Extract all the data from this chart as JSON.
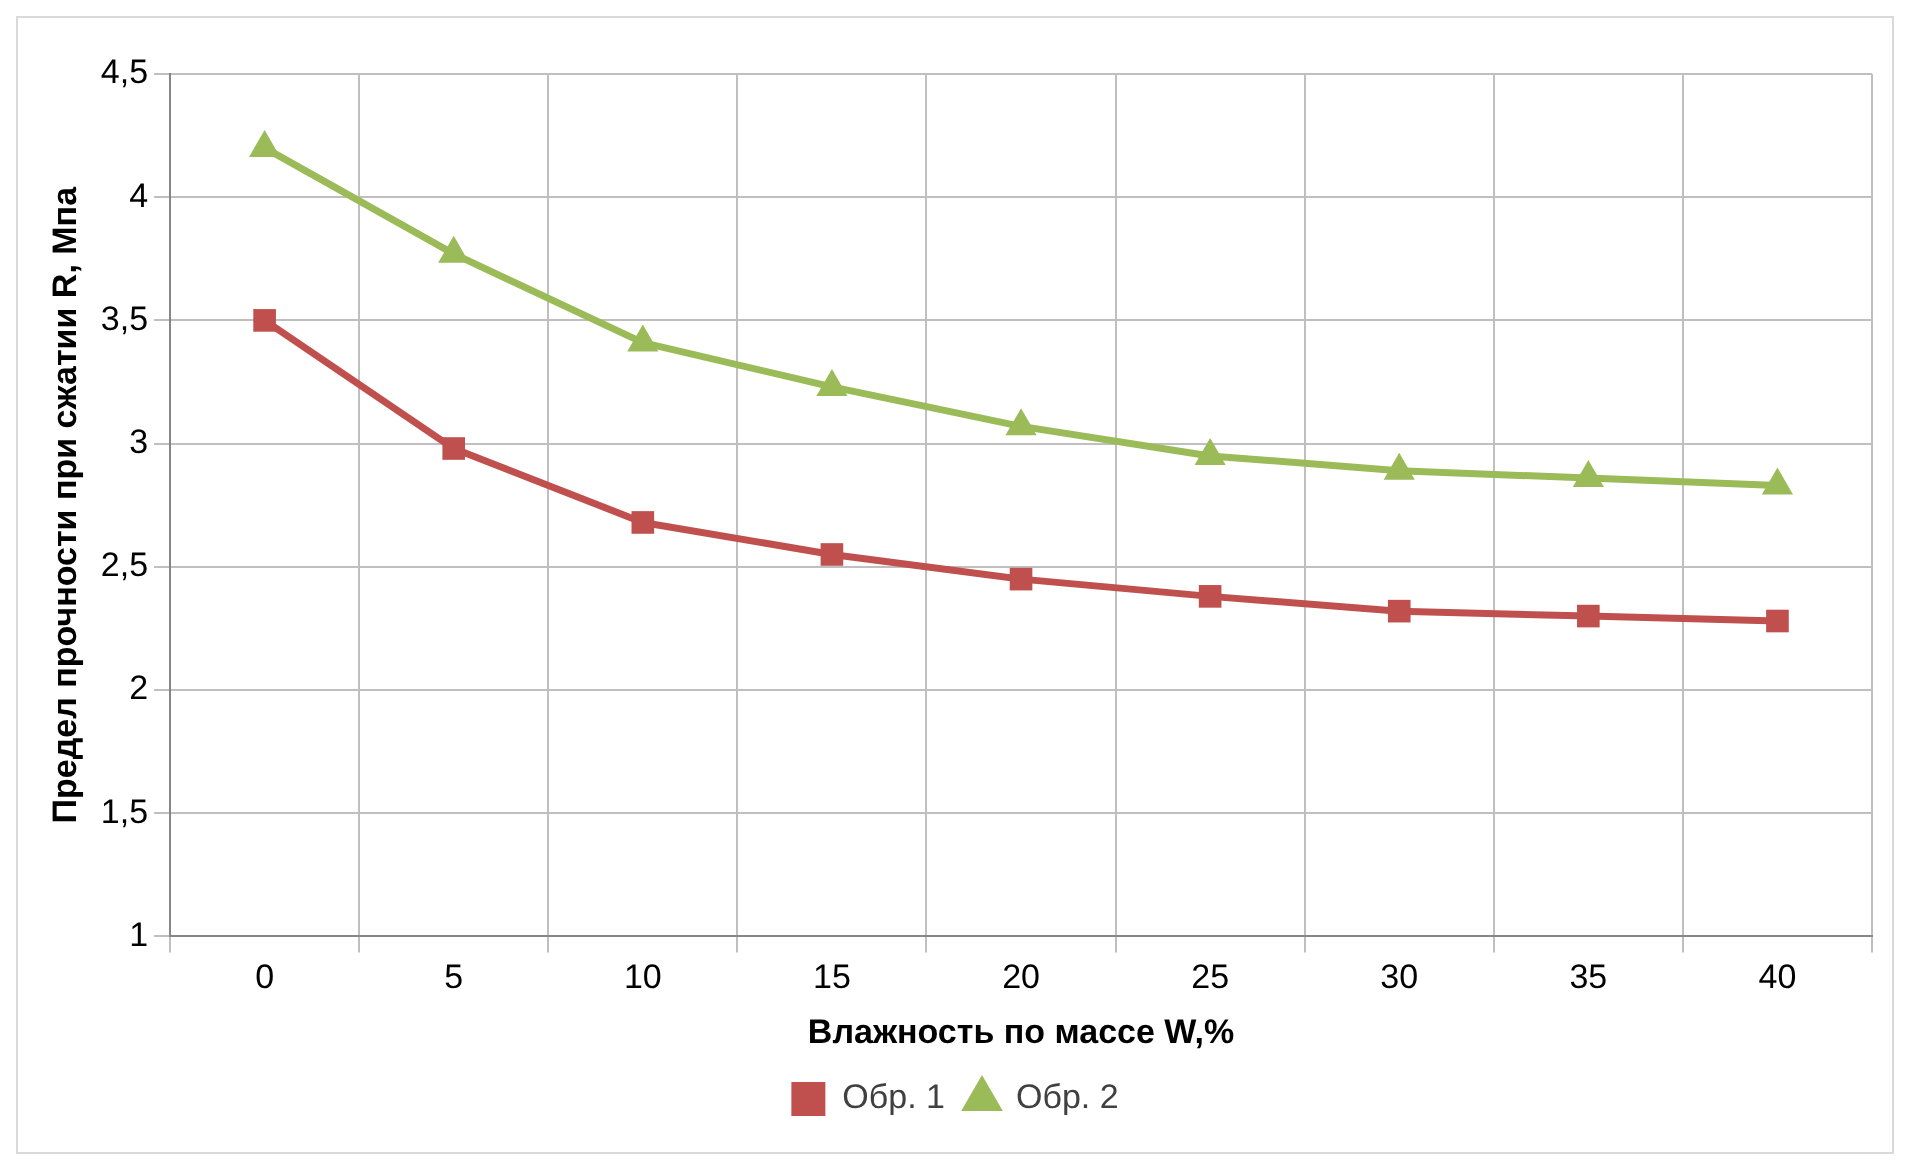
{
  "chart_data": {
    "type": "line",
    "xlabel": "Влажность по массе W,%",
    "ylabel": "Предел прочности при сжатии R, Мпа",
    "categories": [
      "0",
      "5",
      "10",
      "15",
      "20",
      "25",
      "30",
      "35",
      "40"
    ],
    "series": [
      {
        "name": "Обр. 1",
        "color": "#c0504d",
        "marker": "square",
        "values": [
          3.5,
          2.98,
          2.68,
          2.55,
          2.45,
          2.38,
          2.32,
          2.3,
          2.28
        ]
      },
      {
        "name": "Обр. 2",
        "color": "#9bbb59",
        "marker": "triangle",
        "values": [
          4.2,
          3.77,
          3.41,
          3.23,
          3.07,
          2.95,
          2.89,
          2.86,
          2.83
        ]
      }
    ],
    "ylim": [
      1,
      4.5
    ],
    "yticks": [
      1,
      {
        "value": 1.5,
        "label": "1,5"
      },
      2,
      {
        "value": 2.5,
        "label": "2,5"
      },
      3,
      {
        "value": 3.5,
        "label": "3,5"
      },
      4,
      {
        "value": 4.5,
        "label": "4,5"
      }
    ],
    "grid": true,
    "legend": "bottom",
    "line_style": "solid"
  }
}
